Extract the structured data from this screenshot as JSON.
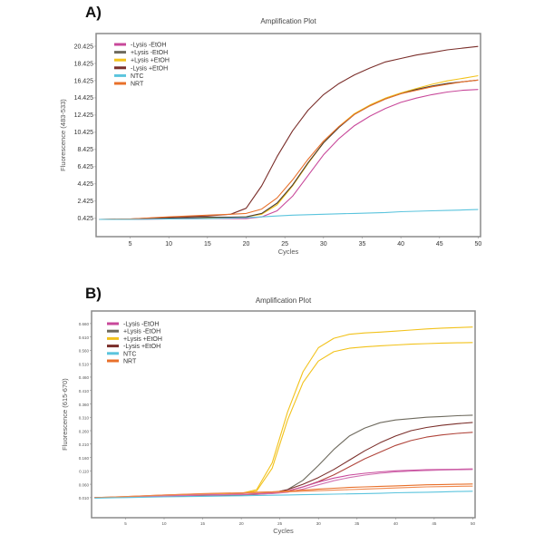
{
  "chart_data": [
    {
      "panel": "A)",
      "type": "line",
      "title": "Amplification Plot",
      "xlabel": "Cycles",
      "ylabel": "Fluorescence (483-533)",
      "xlim": [
        0.6,
        50.3
      ],
      "ylim": [
        -1.7,
        21.9
      ],
      "xticks": [
        5,
        10,
        15,
        20,
        25,
        30,
        35,
        40,
        45,
        50
      ],
      "yticks": [
        0.425,
        2.425,
        4.425,
        6.425,
        8.425,
        10.425,
        12.425,
        14.425,
        16.425,
        18.425,
        20.425
      ],
      "ytick_labels": [
        "0.425",
        "2.425",
        "4.425",
        "6.425",
        "8.425",
        "10.425",
        "12.425",
        "14.425",
        "16.425",
        "18.425",
        "20.425"
      ],
      "legend_position": "top-left",
      "legend": [
        {
          "name": "-Lysis -EtOH",
          "color": "#c8489a"
        },
        {
          "name": "+Lysis -EtOH",
          "color": "#6e6a5e"
        },
        {
          "name": "+Lysis +EtOH",
          "color": "#f2c21b"
        },
        {
          "name": "-Lysis +EtOH",
          "color": "#7a2e2a"
        },
        {
          "name": "NTC",
          "color": "#5bc4dd"
        },
        {
          "name": "NRT",
          "color": "#e8702a"
        }
      ],
      "x": [
        1,
        5,
        10,
        15,
        18,
        20,
        22,
        24,
        26,
        28,
        30,
        32,
        34,
        36,
        38,
        40,
        42,
        44,
        46,
        48,
        50
      ],
      "series": [
        {
          "name": "-Lysis +EtOH",
          "color": "#7a2e2a",
          "values": [
            0.3,
            0.35,
            0.55,
            0.7,
            0.9,
            1.6,
            4.2,
            7.6,
            10.6,
            13.0,
            14.8,
            16.1,
            17.1,
            17.9,
            18.6,
            19.0,
            19.4,
            19.7,
            20.0,
            20.2,
            20.4
          ]
        },
        {
          "name": "+Lysis +EtOH",
          "color": "#f2c21b",
          "values": [
            0.3,
            0.3,
            0.4,
            0.5,
            0.5,
            0.6,
            0.9,
            2.0,
            4.2,
            6.8,
            9.2,
            11.1,
            12.6,
            13.6,
            14.4,
            15.0,
            15.5,
            16.0,
            16.4,
            16.7,
            17.0
          ]
        },
        {
          "name": "+Lysis -EtOH",
          "color": "#4a3a30",
          "values": [
            0.3,
            0.3,
            0.45,
            0.55,
            0.55,
            0.6,
            1.0,
            2.2,
            4.3,
            6.9,
            9.2,
            11.0,
            12.5,
            13.5,
            14.3,
            14.9,
            15.4,
            15.8,
            16.1,
            16.3,
            16.5
          ]
        },
        {
          "name": "NRT",
          "color": "#e8702a",
          "values": [
            0.3,
            0.35,
            0.6,
            0.8,
            0.9,
            1.0,
            1.5,
            2.8,
            4.9,
            7.3,
            9.4,
            11.1,
            12.5,
            13.5,
            14.3,
            14.9,
            15.3,
            15.7,
            16.0,
            16.3,
            16.5
          ]
        },
        {
          "name": "-Lysis -EtOH",
          "color": "#c8489a",
          "values": [
            0.3,
            0.3,
            0.35,
            0.4,
            0.4,
            0.4,
            0.6,
            1.3,
            3.0,
            5.4,
            7.8,
            9.7,
            11.2,
            12.3,
            13.2,
            13.9,
            14.4,
            14.8,
            15.1,
            15.3,
            15.4
          ]
        },
        {
          "name": "NTC",
          "color": "#5bc4dd",
          "values": [
            0.3,
            0.3,
            0.35,
            0.4,
            0.45,
            0.5,
            0.6,
            0.7,
            0.8,
            0.85,
            0.9,
            0.95,
            1.0,
            1.05,
            1.1,
            1.2,
            1.25,
            1.3,
            1.35,
            1.4,
            1.45
          ]
        }
      ]
    },
    {
      "panel": "B)",
      "type": "line",
      "title": "Amplification Plot",
      "xlabel": "Cycles",
      "ylabel": "Fluorescence (615-670)",
      "xlim": [
        0.6,
        50.3
      ],
      "ylim": [
        -0.065,
        0.707
      ],
      "xticks": [
        5,
        10,
        15,
        20,
        25,
        30,
        35,
        40,
        45,
        50
      ],
      "yticks": [
        0.01,
        0.06,
        0.11,
        0.16,
        0.21,
        0.26,
        0.31,
        0.36,
        0.41,
        0.46,
        0.51,
        0.56,
        0.61,
        0.66
      ],
      "ytick_labels": [
        "0.010",
        "0.060",
        "0.110",
        "0.160",
        "0.210",
        "0.260",
        "0.310",
        "0.360",
        "0.410",
        "0.460",
        "0.510",
        "0.560",
        "0.610",
        "0.660"
      ],
      "legend_position": "top-left",
      "legend": [
        {
          "name": "-Lysis -EtOH",
          "color": "#c8489a"
        },
        {
          "name": "+Lysis -EtOH",
          "color": "#6e6a5e"
        },
        {
          "name": "+Lysis +EtOH",
          "color": "#f2c21b"
        },
        {
          "name": "-Lysis +EtOH",
          "color": "#7a2e2a"
        },
        {
          "name": "NTC",
          "color": "#5bc4dd"
        },
        {
          "name": "NRT",
          "color": "#e8702a"
        }
      ],
      "x": [
        1,
        5,
        10,
        15,
        20,
        22,
        24,
        26,
        28,
        30,
        32,
        34,
        36,
        38,
        40,
        42,
        44,
        46,
        48,
        50
      ],
      "series": [
        {
          "name": "+Lysis +EtOH",
          "color": "#f2c21b",
          "values": [
            0.01,
            0.012,
            0.018,
            0.022,
            0.026,
            0.04,
            0.14,
            0.33,
            0.48,
            0.57,
            0.605,
            0.62,
            0.625,
            0.628,
            0.632,
            0.636,
            0.64,
            0.643,
            0.645,
            0.647
          ]
        },
        {
          "name": "+Lysis +EtOH",
          "color": "#f2c21b",
          "values": [
            0.01,
            0.012,
            0.018,
            0.022,
            0.026,
            0.035,
            0.12,
            0.3,
            0.44,
            0.52,
            0.555,
            0.568,
            0.573,
            0.577,
            0.58,
            0.583,
            0.585,
            0.587,
            0.588,
            0.589
          ]
        },
        {
          "name": "+Lysis -EtOH",
          "color": "#6e6a5e",
          "values": [
            0.01,
            0.012,
            0.015,
            0.018,
            0.02,
            0.022,
            0.026,
            0.04,
            0.075,
            0.13,
            0.19,
            0.24,
            0.27,
            0.29,
            0.3,
            0.305,
            0.31,
            0.313,
            0.316,
            0.318
          ]
        },
        {
          "name": "-Lysis +EtOH",
          "color": "#7a2e2a",
          "values": [
            0.01,
            0.012,
            0.016,
            0.02,
            0.022,
            0.024,
            0.028,
            0.04,
            0.06,
            0.085,
            0.115,
            0.15,
            0.185,
            0.215,
            0.24,
            0.26,
            0.272,
            0.28,
            0.286,
            0.291
          ]
        },
        {
          "name": "-Lysis +EtOH",
          "color": "#b0443a",
          "values": [
            0.01,
            0.012,
            0.016,
            0.02,
            0.022,
            0.024,
            0.027,
            0.035,
            0.05,
            0.07,
            0.095,
            0.125,
            0.155,
            0.18,
            0.205,
            0.223,
            0.236,
            0.244,
            0.25,
            0.254
          ]
        },
        {
          "name": "-Lysis -EtOH",
          "color": "#c8489a",
          "values": [
            0.01,
            0.012,
            0.016,
            0.02,
            0.022,
            0.024,
            0.027,
            0.035,
            0.05,
            0.068,
            0.083,
            0.094,
            0.101,
            0.106,
            0.11,
            0.112,
            0.114,
            0.115,
            0.116,
            0.117
          ]
        },
        {
          "name": "-Lysis -EtOH",
          "color": "#d070b0",
          "values": [
            0.01,
            0.012,
            0.016,
            0.02,
            0.022,
            0.023,
            0.025,
            0.03,
            0.042,
            0.058,
            0.073,
            0.085,
            0.094,
            0.101,
            0.106,
            0.109,
            0.111,
            0.113,
            0.114,
            0.115
          ]
        },
        {
          "name": "NRT",
          "color": "#e8702a",
          "values": [
            0.01,
            0.014,
            0.02,
            0.025,
            0.028,
            0.03,
            0.032,
            0.035,
            0.038,
            0.042,
            0.045,
            0.048,
            0.05,
            0.052,
            0.054,
            0.056,
            0.058,
            0.059,
            0.06,
            0.061
          ]
        },
        {
          "name": "NRT",
          "color": "#f08a50",
          "values": [
            0.01,
            0.014,
            0.02,
            0.024,
            0.027,
            0.028,
            0.03,
            0.032,
            0.034,
            0.036,
            0.038,
            0.04,
            0.042,
            0.044,
            0.046,
            0.048,
            0.05,
            0.051,
            0.052,
            0.053
          ]
        },
        {
          "name": "NTC",
          "color": "#5bc4dd",
          "values": [
            0.008,
            0.01,
            0.013,
            0.015,
            0.017,
            0.018,
            0.019,
            0.02,
            0.021,
            0.022,
            0.023,
            0.024,
            0.025,
            0.026,
            0.028,
            0.029,
            0.03,
            0.031,
            0.033,
            0.034
          ]
        }
      ]
    }
  ]
}
